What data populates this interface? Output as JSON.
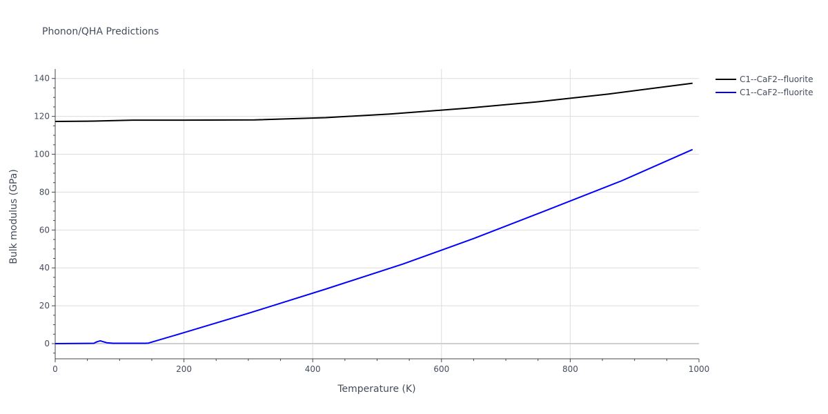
{
  "chart_data": {
    "type": "line",
    "title": "Phonon/QHA Predictions",
    "xlabel": "Temperature (K)",
    "ylabel": "Bulk modulus (GPa)",
    "xlim": [
      0,
      1000
    ],
    "ylim": [
      -8,
      145
    ],
    "x_ticks": [
      0,
      200,
      400,
      600,
      800,
      1000
    ],
    "y_ticks": [
      0,
      20,
      40,
      60,
      80,
      100,
      120,
      140
    ],
    "grid": true,
    "legend_position": "top-right",
    "series": [
      {
        "name": "C1--CaF2--fluorite",
        "color": "#000000",
        "x": [
          0,
          60,
          120,
          200,
          310,
          420,
          520,
          640,
          750,
          860,
          990
        ],
        "y": [
          117.3,
          117.5,
          118.0,
          118.0,
          118.1,
          119.3,
          121.2,
          124.3,
          127.7,
          131.8,
          137.5
        ]
      },
      {
        "name": "C1--CaF2--fluorite",
        "color": "#0000ff",
        "x": [
          0,
          60,
          65,
          70,
          80,
          90,
          100,
          140,
          145,
          150,
          200,
          300,
          420,
          540,
          650,
          760,
          880,
          990
        ],
        "y": [
          0,
          0.2,
          1.0,
          1.5,
          0.5,
          0.2,
          0.2,
          0.2,
          0.3,
          0.8,
          5.8,
          16.0,
          28.8,
          42.0,
          55.5,
          70.0,
          86.0,
          102.5
        ]
      }
    ]
  }
}
